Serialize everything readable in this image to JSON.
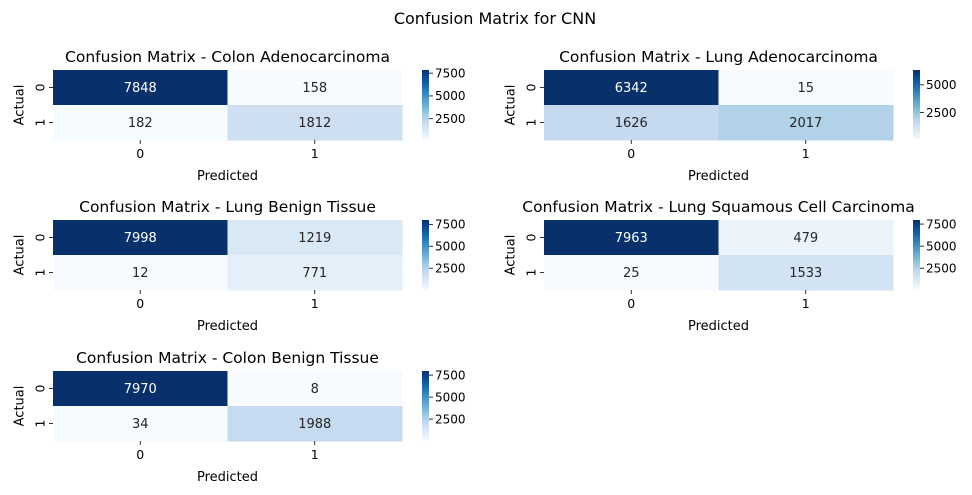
{
  "figure": {
    "suptitle": "Confusion Matrix for CNN"
  },
  "chart_data": [
    {
      "type": "heatmap",
      "title": "Confusion Matrix - Colon Adenocarcinoma",
      "xlabel": "Predicted",
      "ylabel": "Actual",
      "x_categories": [
        "0",
        "1"
      ],
      "y_categories": [
        "0",
        "1"
      ],
      "values": [
        [
          7848,
          158
        ],
        [
          182,
          1812
        ]
      ],
      "colorbar": {
        "cmap": "Blues",
        "range": [
          158,
          7848
        ],
        "ticks": [
          2500,
          5000,
          7500
        ],
        "tick_labels": [
          "2500",
          "5000",
          "7500"
        ]
      }
    },
    {
      "type": "heatmap",
      "title": "Confusion Matrix - Lung Adenocarcinoma",
      "xlabel": "Predicted",
      "ylabel": "Actual",
      "x_categories": [
        "0",
        "1"
      ],
      "y_categories": [
        "0",
        "1"
      ],
      "values": [
        [
          6342,
          15
        ],
        [
          1626,
          2017
        ]
      ],
      "colorbar": {
        "cmap": "Blues",
        "range": [
          15,
          6342
        ],
        "ticks": [
          2500,
          5000
        ],
        "tick_labels": [
          "2500",
          "5000"
        ]
      }
    },
    {
      "type": "heatmap",
      "title": "Confusion Matrix - Lung Benign Tissue",
      "xlabel": "Predicted",
      "ylabel": "Actual",
      "x_categories": [
        "0",
        "1"
      ],
      "y_categories": [
        "0",
        "1"
      ],
      "values": [
        [
          7998,
          1219
        ],
        [
          12,
          771
        ]
      ],
      "colorbar": {
        "cmap": "Blues",
        "range": [
          12,
          7998
        ],
        "ticks": [
          2500,
          5000,
          7500
        ],
        "tick_labels": [
          "2500",
          "5000",
          "7500"
        ]
      }
    },
    {
      "type": "heatmap",
      "title": "Confusion Matrix - Lung Squamous Cell Carcinoma",
      "xlabel": "Predicted",
      "ylabel": "Actual",
      "x_categories": [
        "0",
        "1"
      ],
      "y_categories": [
        "0",
        "1"
      ],
      "values": [
        [
          7963,
          479
        ],
        [
          25,
          1533
        ]
      ],
      "colorbar": {
        "cmap": "Blues",
        "range": [
          25,
          7963
        ],
        "ticks": [
          2500,
          5000,
          7500
        ],
        "tick_labels": [
          "2500",
          "5000",
          "7500"
        ]
      }
    },
    {
      "type": "heatmap",
      "title": "Confusion Matrix - Colon Benign Tissue",
      "xlabel": "Predicted",
      "ylabel": "Actual",
      "x_categories": [
        "0",
        "1"
      ],
      "y_categories": [
        "0",
        "1"
      ],
      "values": [
        [
          7970,
          8
        ],
        [
          34,
          1988
        ]
      ],
      "colorbar": {
        "cmap": "Blues",
        "range": [
          8,
          7970
        ],
        "ticks": [
          2500,
          5000,
          7500
        ],
        "tick_labels": [
          "2500",
          "5000",
          "7500"
        ]
      }
    }
  ]
}
